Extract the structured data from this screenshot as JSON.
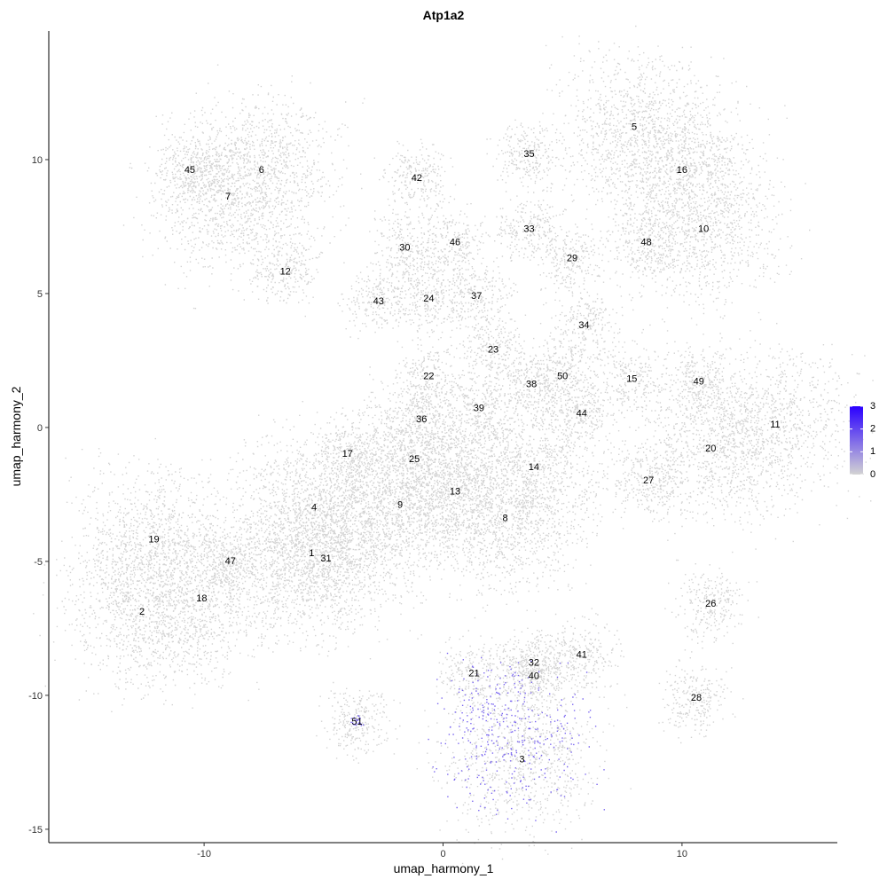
{
  "chart_data": {
    "type": "scatter",
    "title": "Atp1a2",
    "xlabel": "umap_harmony_1",
    "ylabel": "umap_harmony_2",
    "xlim": [
      -16.5,
      16.5
    ],
    "ylim": [
      -15.5,
      14.8
    ],
    "xticks": [
      -10,
      0,
      10
    ],
    "yticks": [
      -15,
      -10,
      -5,
      0,
      5,
      10
    ],
    "grid": false,
    "legend": {
      "placement": "right",
      "type": "colorbar",
      "min": 0,
      "max": 3,
      "ticks": [
        0,
        1,
        2,
        3
      ],
      "low_color": "#d3d3d3",
      "high_color": "#2a00ff"
    },
    "clusters": [
      {
        "label": "1",
        "x": -5.5,
        "y": -4.7
      },
      {
        "label": "2",
        "x": -12.6,
        "y": -6.9
      },
      {
        "label": "3",
        "x": 3.3,
        "y": -12.4
      },
      {
        "label": "4",
        "x": -5.4,
        "y": -3.0
      },
      {
        "label": "5",
        "x": 8.0,
        "y": 11.2
      },
      {
        "label": "6",
        "x": -7.6,
        "y": 9.6
      },
      {
        "label": "7",
        "x": -9.0,
        "y": 8.6
      },
      {
        "label": "8",
        "x": 2.6,
        "y": -3.4
      },
      {
        "label": "9",
        "x": -1.8,
        "y": -2.9
      },
      {
        "label": "10",
        "x": 10.9,
        "y": 7.4
      },
      {
        "label": "11",
        "x": 13.9,
        "y": 0.1
      },
      {
        "label": "12",
        "x": -6.6,
        "y": 5.8
      },
      {
        "label": "13",
        "x": 0.5,
        "y": -2.4
      },
      {
        "label": "14",
        "x": 3.8,
        "y": -1.5
      },
      {
        "label": "15",
        "x": 7.9,
        "y": 1.8
      },
      {
        "label": "16",
        "x": 10.0,
        "y": 9.6
      },
      {
        "label": "17",
        "x": -4.0,
        "y": -1.0
      },
      {
        "label": "18",
        "x": -10.1,
        "y": -6.4
      },
      {
        "label": "19",
        "x": -12.1,
        "y": -4.2
      },
      {
        "label": "20",
        "x": 11.2,
        "y": -0.8
      },
      {
        "label": "21",
        "x": 1.3,
        "y": -9.2
      },
      {
        "label": "22",
        "x": -0.6,
        "y": 1.9
      },
      {
        "label": "23",
        "x": 2.1,
        "y": 2.9
      },
      {
        "label": "24",
        "x": -0.6,
        "y": 4.8
      },
      {
        "label": "25",
        "x": -1.2,
        "y": -1.2
      },
      {
        "label": "26",
        "x": 11.2,
        "y": -6.6
      },
      {
        "label": "27",
        "x": 8.6,
        "y": -2.0
      },
      {
        "label": "28",
        "x": 10.6,
        "y": -10.1
      },
      {
        "label": "29",
        "x": 5.4,
        "y": 6.3
      },
      {
        "label": "30",
        "x": -1.6,
        "y": 6.7
      },
      {
        "label": "31",
        "x": -4.9,
        "y": -4.9
      },
      {
        "label": "32",
        "x": 3.8,
        "y": -8.8
      },
      {
        "label": "33",
        "x": 3.6,
        "y": 7.4
      },
      {
        "label": "34",
        "x": 5.9,
        "y": 3.8
      },
      {
        "label": "35",
        "x": 3.6,
        "y": 10.2
      },
      {
        "label": "36",
        "x": -0.9,
        "y": 0.3
      },
      {
        "label": "37",
        "x": 1.4,
        "y": 4.9
      },
      {
        "label": "38",
        "x": 3.7,
        "y": 1.6
      },
      {
        "label": "39",
        "x": 1.5,
        "y": 0.7
      },
      {
        "label": "40",
        "x": 3.8,
        "y": -9.3
      },
      {
        "label": "41",
        "x": 5.8,
        "y": -8.5
      },
      {
        "label": "42",
        "x": -1.1,
        "y": 9.3
      },
      {
        "label": "43",
        "x": -2.7,
        "y": 4.7
      },
      {
        "label": "44",
        "x": 5.8,
        "y": 0.5
      },
      {
        "label": "45",
        "x": -10.6,
        "y": 9.6
      },
      {
        "label": "46",
        "x": 0.5,
        "y": 6.9
      },
      {
        "label": "47",
        "x": -8.9,
        "y": -5.0
      },
      {
        "label": "48",
        "x": 8.5,
        "y": 6.9
      },
      {
        "label": "49",
        "x": 10.7,
        "y": 1.7
      },
      {
        "label": "50",
        "x": 5.0,
        "y": 1.9
      },
      {
        "label": "51",
        "x": -3.6,
        "y": -11.0
      }
    ]
  }
}
